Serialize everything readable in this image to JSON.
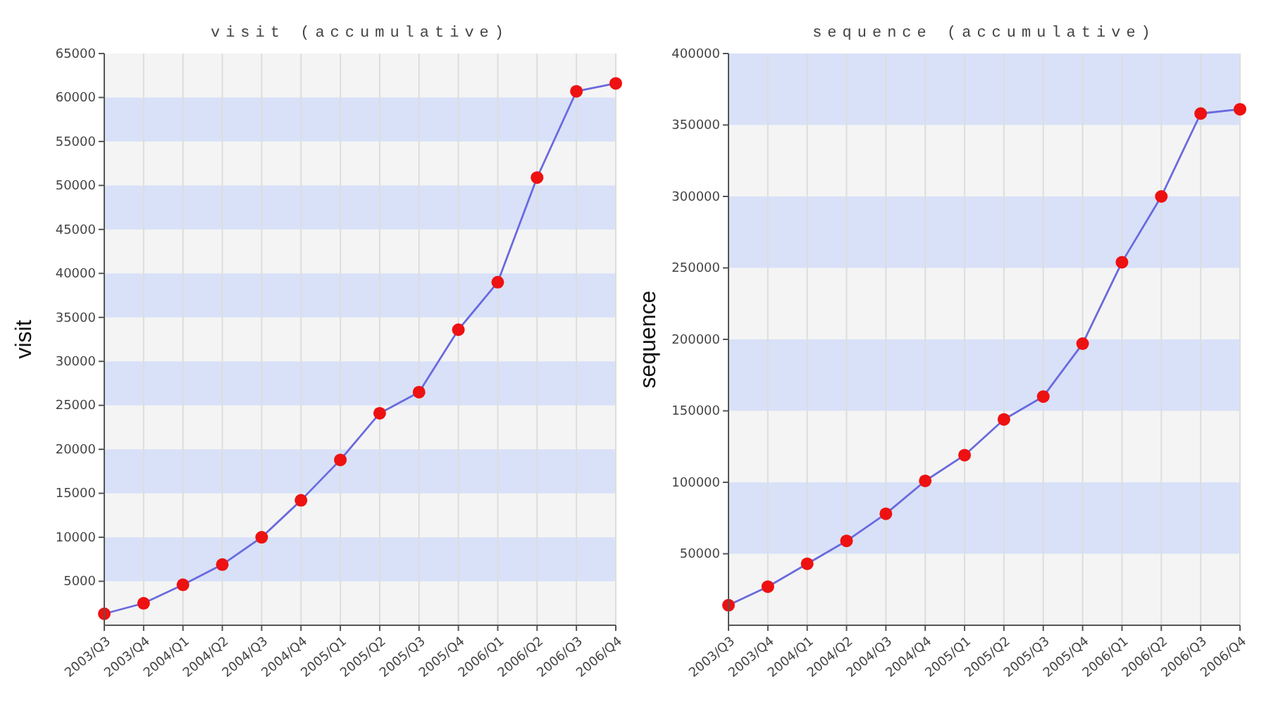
{
  "chart_data": [
    {
      "type": "line",
      "title": "visit (accumulative)",
      "ylabel": "visit",
      "categories": [
        "2003/Q3",
        "2003/Q4",
        "2004/Q1",
        "2004/Q2",
        "2004/Q3",
        "2004/Q4",
        "2005/Q1",
        "2005/Q2",
        "2005/Q3",
        "2005/Q4",
        "2006/Q1",
        "2006/Q2",
        "2006/Q3",
        "2006/Q4"
      ],
      "series": [
        {
          "color": "#6a6ade",
          "values": [
            1300,
            2500,
            4600,
            6900,
            10000,
            14200,
            18800,
            24100,
            26500,
            33600,
            39000,
            50900,
            60700,
            61600
          ]
        }
      ],
      "ylim": [
        0,
        65000
      ],
      "yticks": [
        5000,
        10000,
        15000,
        20000,
        25000,
        30000,
        35000,
        40000,
        45000,
        50000,
        55000,
        60000,
        65000
      ],
      "grid": true,
      "marker": "circle"
    },
    {
      "type": "line",
      "title": "sequence (accumulative)",
      "ylabel": "sequence",
      "categories": [
        "2003/Q3",
        "2003/Q4",
        "2004/Q1",
        "2004/Q2",
        "2004/Q3",
        "2004/Q4",
        "2005/Q1",
        "2005/Q2",
        "2005/Q3",
        "2005/Q4",
        "2006/Q1",
        "2006/Q2",
        "2006/Q3",
        "2006/Q4"
      ],
      "series": [
        {
          "color": "#6a6ade",
          "values": [
            14000,
            27000,
            43000,
            59000,
            78000,
            101000,
            119000,
            144000,
            160000,
            197000,
            254000,
            300000,
            358000,
            361000
          ]
        }
      ],
      "ylim": [
        0,
        400000
      ],
      "yticks": [
        50000,
        100000,
        150000,
        200000,
        250000,
        300000,
        350000,
        400000
      ],
      "grid": true,
      "marker": "circle"
    }
  ]
}
